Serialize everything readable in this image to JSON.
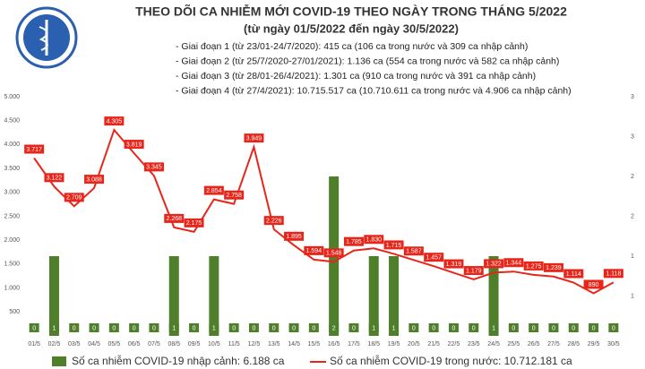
{
  "chart_data": {
    "type": "combo",
    "title": "THEO DÕI CA NHIỄM MỚI COVID-19 THEO NGÀY TRONG THÁNG 5/2022",
    "subtitle": "(từ ngày 01/5/2022 đến ngày 30/5/2022)",
    "notes": [
      "- Giai đoạn 1 (từ 23/01-24/7/2020): 415 ca (106 ca trong nước và 309 ca nhập cảnh)",
      "- Giai đoạn 2 (từ 25/7/2020-27/01/2021): 1.136 ca (554 ca trong nước và 582 ca nhập cảnh)",
      "- Giai đoạn 3 (từ 28/01-26/4/2021): 1.301 ca (910 ca trong nước và 391 ca nhập cảnh)",
      "- Giai đoạn 4 (từ 27/4/2021): 10.715.517 ca (10.710.611 ca trong nước và 4.906 ca nhập cảnh)"
    ],
    "categories": [
      "01/5",
      "02/5",
      "03/5",
      "04/5",
      "05/5",
      "06/5",
      "07/5",
      "08/5",
      "09/5",
      "10/5",
      "11/5",
      "12/5",
      "13/5",
      "14/5",
      "15/5",
      "16/5",
      "17/5",
      "18/5",
      "19/5",
      "20/5",
      "21/5",
      "22/5",
      "23/5",
      "24/5",
      "25/5",
      "26/5",
      "27/5",
      "28/5",
      "29/5",
      "30/5"
    ],
    "series": [
      {
        "name": "Số ca nhiễm COVID-19 nhập cảnh: 6.188 ca",
        "type": "bar",
        "axis": "y2",
        "color": "#4f7f2b",
        "values": [
          0,
          1,
          0,
          0,
          0,
          0,
          0,
          1,
          0,
          1,
          0,
          0,
          0,
          0,
          0,
          2,
          0,
          1,
          1,
          0,
          0,
          0,
          0,
          1,
          0,
          0,
          0,
          0,
          0,
          0
        ]
      },
      {
        "name": "Số ca nhiễm COVID-19 trong nước: 10.712.181 ca",
        "type": "line",
        "color": "#e8251a",
        "values": [
          3717,
          3122,
          2709,
          3088,
          4305,
          3819,
          3345,
          2268,
          2175,
          2854,
          2758,
          3949,
          2226,
          1895,
          1594,
          1548,
          1785,
          1830,
          1715,
          1587,
          1457,
          1319,
          1179,
          1322,
          1344,
          1275,
          1239,
          1114,
          890,
          1118
        ],
        "value_labels": [
          "3.717",
          "3.122",
          "2.709",
          "3.088",
          "4.305",
          "3.819",
          "3.345",
          "2.268",
          "2.175",
          "2.854",
          "2.758",
          "3.949",
          "2.226",
          "1.895",
          "1.594",
          "1.548",
          "1.785",
          "1.830",
          "1.715",
          "1.587",
          "1.457",
          "1.319",
          "1.179",
          "1.322",
          "1.344",
          "1.275",
          "1.239",
          "1.114",
          "890",
          "1.118"
        ]
      }
    ],
    "ylim": [
      0,
      5000
    ],
    "yticks": [
      500,
      {
        "value": 1000,
        "label": "1.000"
      },
      {
        "value": 1500,
        "label": "1.500"
      },
      {
        "value": 2000,
        "label": "2.000"
      },
      {
        "value": 2500,
        "label": "2.500"
      },
      {
        "value": 3000,
        "label": "3.000"
      },
      {
        "value": 3500,
        "label": "3.500"
      },
      {
        "value": 4000,
        "label": "4.000"
      },
      {
        "value": 4500,
        "label": "4.500"
      },
      {
        "value": 5000,
        "label": "5.000"
      }
    ],
    "y2lim": [
      0,
      3
    ],
    "y2ticks": [
      {
        "value": 0.5,
        "label": "1"
      },
      1,
      {
        "value": 1.5,
        "label": "2"
      },
      2,
      {
        "value": 2.5,
        "label": "3"
      },
      3
    ]
  }
}
